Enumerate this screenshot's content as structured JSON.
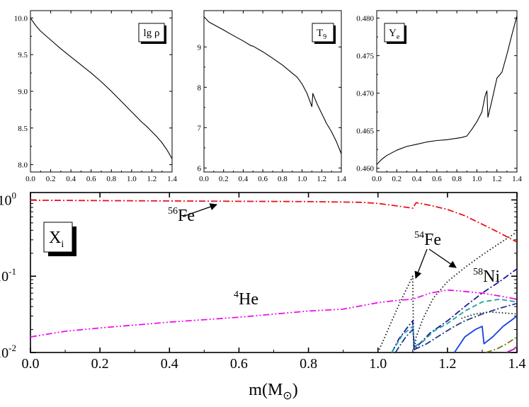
{
  "chart_data": [
    {
      "type": "line",
      "legend_label": "lg ρ",
      "xlim": [
        0.0,
        1.4
      ],
      "ylim": [
        7.9,
        10.1
      ],
      "x_ticks": [
        "0.0",
        "0.2",
        "0.4",
        "0.6",
        "0.8",
        "1.0",
        "1.2",
        "1.4"
      ],
      "y_ticks": [
        "8.0",
        "8.5",
        "9.0",
        "9.5",
        "10.0"
      ],
      "series": [
        {
          "color": "#000000",
          "x": [
            0.0,
            0.05,
            0.1,
            0.2,
            0.3,
            0.4,
            0.5,
            0.6,
            0.7,
            0.8,
            0.9,
            1.0,
            1.05,
            1.1,
            1.15,
            1.2,
            1.25,
            1.3,
            1.35,
            1.4
          ],
          "y": [
            10.0,
            9.9,
            9.82,
            9.7,
            9.58,
            9.47,
            9.36,
            9.25,
            9.13,
            9.0,
            8.86,
            8.72,
            8.65,
            8.58,
            8.52,
            8.45,
            8.38,
            8.3,
            8.2,
            8.08
          ]
        }
      ]
    },
    {
      "type": "line",
      "legend_label": "T9",
      "xlim": [
        0.0,
        1.4
      ],
      "ylim": [
        5.9,
        9.9
      ],
      "x_ticks": [
        "0.0",
        "0.2",
        "0.4",
        "0.6",
        "0.8",
        "1.0",
        "1.2",
        "1.4"
      ],
      "y_ticks": [
        "6",
        "7",
        "8",
        "9"
      ],
      "series": [
        {
          "color": "#000000",
          "x": [
            0.0,
            0.05,
            0.1,
            0.2,
            0.3,
            0.4,
            0.48,
            0.5,
            0.6,
            0.7,
            0.8,
            0.9,
            0.95,
            1.0,
            1.05,
            1.08,
            1.1,
            1.11,
            1.12,
            1.15,
            1.2,
            1.25,
            1.3,
            1.35,
            1.4
          ],
          "y": [
            9.75,
            9.62,
            9.55,
            9.42,
            9.28,
            9.15,
            9.03,
            9.02,
            8.88,
            8.72,
            8.55,
            8.35,
            8.25,
            8.08,
            7.85,
            7.65,
            7.52,
            7.85,
            7.78,
            7.6,
            7.35,
            7.1,
            6.9,
            6.65,
            6.35
          ]
        }
      ]
    },
    {
      "type": "line",
      "legend_label": "Ye",
      "xlim": [
        0.0,
        1.4
      ],
      "ylim": [
        0.4595,
        0.481
      ],
      "x_ticks": [
        "0.0",
        "0.2",
        "0.4",
        "0.6",
        "0.8",
        "1.0",
        "1.2",
        "1.4"
      ],
      "y_ticks": [
        "0.460",
        "0.465",
        "0.470",
        "0.475",
        "0.480"
      ],
      "series": [
        {
          "color": "#000000",
          "x": [
            0.0,
            0.05,
            0.1,
            0.2,
            0.3,
            0.4,
            0.5,
            0.6,
            0.7,
            0.8,
            0.85,
            0.9,
            0.95,
            1.0,
            1.05,
            1.08,
            1.09,
            1.1,
            1.11,
            1.15,
            1.2,
            1.25,
            1.3,
            1.35,
            1.4
          ],
          "y": [
            0.4605,
            0.4612,
            0.4617,
            0.4624,
            0.4629,
            0.4632,
            0.4635,
            0.4637,
            0.4638,
            0.464,
            0.4641,
            0.4643,
            0.4652,
            0.4662,
            0.4675,
            0.4695,
            0.47,
            0.4703,
            0.4668,
            0.469,
            0.472,
            0.4728,
            0.4752,
            0.4778,
            0.4803
          ]
        }
      ]
    },
    {
      "type": "line",
      "log_y": true,
      "legend_label": "Xi",
      "xlabel": "m(M⊙)",
      "xlim": [
        0.0,
        1.4
      ],
      "ylim": [
        0.01,
        1.25
      ],
      "x_ticks": [
        "0.0",
        "0.2",
        "0.4",
        "0.6",
        "0.8",
        "1.0",
        "1.2",
        "1.4"
      ],
      "y_ticks": [
        {
          "value": 1,
          "mantissa": "10",
          "exp": "0"
        },
        {
          "value": 0.1,
          "mantissa": "10",
          "exp": "-1"
        },
        {
          "value": 0.01,
          "mantissa": "10",
          "exp": "-2"
        }
      ],
      "annotations": [
        {
          "sup": "56",
          "text": "Fe"
        },
        {
          "sup": "54",
          "text": "Fe"
        },
        {
          "sup": "58",
          "text": "Ni"
        },
        {
          "sup": "4",
          "text": "He"
        }
      ],
      "series": [
        {
          "color": "#e8141c",
          "dash": "9,3,2,3",
          "x": [
            0.0,
            0.2,
            0.4,
            0.6,
            0.8,
            0.95,
            1.0,
            1.05,
            1.1,
            1.11,
            1.15,
            1.2,
            1.25,
            1.3,
            1.35,
            1.4
          ],
          "y": [
            0.99,
            0.98,
            0.97,
            0.96,
            0.95,
            0.93,
            0.9,
            0.84,
            0.78,
            0.92,
            0.85,
            0.75,
            0.62,
            0.48,
            0.37,
            0.28
          ]
        },
        {
          "color": "#ee11ee",
          "dash": "9,3,2,3,2,3",
          "x": [
            0.0,
            0.1,
            0.2,
            0.4,
            0.6,
            0.8,
            0.9,
            1.0,
            1.05,
            1.1,
            1.15,
            1.2,
            1.25,
            1.3,
            1.35,
            1.4
          ],
          "y": [
            0.016,
            0.019,
            0.021,
            0.025,
            0.029,
            0.035,
            0.037,
            0.045,
            0.048,
            0.05,
            0.06,
            0.066,
            0.063,
            0.06,
            0.055,
            0.05
          ]
        },
        {
          "color": "#111111",
          "dash": "1.5,3",
          "x": [
            1.0,
            1.02,
            1.04,
            1.06,
            1.08,
            1.1,
            1.103,
            1.11,
            1.13,
            1.16,
            1.2,
            1.25,
            1.3,
            1.35,
            1.4
          ],
          "y": [
            0.01,
            0.016,
            0.026,
            0.042,
            0.065,
            0.1,
            0.01,
            0.016,
            0.028,
            0.052,
            0.085,
            0.13,
            0.19,
            0.27,
            0.38
          ]
        },
        {
          "color": "#1a1a9a",
          "dash": "9,3,2,3",
          "x": [
            1.04,
            1.06,
            1.08,
            1.1,
            1.104,
            1.12,
            1.15,
            1.2,
            1.25,
            1.3,
            1.35,
            1.4
          ],
          "y": [
            0.01,
            0.015,
            0.02,
            0.026,
            0.011,
            0.013,
            0.018,
            0.026,
            0.04,
            0.06,
            0.085,
            0.125
          ]
        },
        {
          "color": "#1f9f9f",
          "dash": "7,4",
          "x": [
            1.04,
            1.07,
            1.1,
            1.105,
            1.13,
            1.16,
            1.2,
            1.25,
            1.3,
            1.35,
            1.4
          ],
          "y": [
            0.01,
            0.017,
            0.022,
            0.012,
            0.014,
            0.019,
            0.024,
            0.035,
            0.046,
            0.05,
            0.046
          ]
        },
        {
          "color": "#1a3a8a",
          "dash": "9,3,2,3",
          "x": [
            1.05,
            1.08,
            1.1,
            1.106,
            1.14,
            1.18,
            1.22,
            1.25,
            1.3,
            1.35,
            1.4
          ],
          "y": [
            0.01,
            0.016,
            0.02,
            0.011,
            0.013,
            0.017,
            0.022,
            0.026,
            0.032,
            0.038,
            0.044
          ]
        },
        {
          "color": "#1a1a1a",
          "dash": "1.5,3",
          "x": [
            1.24,
            1.28,
            1.32,
            1.36,
            1.4
          ],
          "y": [
            0.028,
            0.032,
            0.034,
            0.033,
            0.032
          ]
        },
        {
          "color": "#1540e0",
          "dash": "",
          "x": [
            1.22,
            1.25,
            1.28,
            1.3,
            1.305,
            1.33,
            1.36,
            1.4
          ],
          "y": [
            0.01,
            0.016,
            0.02,
            0.022,
            0.013,
            0.016,
            0.022,
            0.03
          ]
        },
        {
          "color": "#7a7a10",
          "dash": "9,3,2,3",
          "x": [
            1.31,
            1.34,
            1.37,
            1.4
          ],
          "y": [
            0.01,
            0.011,
            0.013,
            0.016
          ]
        },
        {
          "color": "#b01ab0",
          "dash": "",
          "x": [
            1.37,
            1.39,
            1.4
          ],
          "y": [
            0.01,
            0.011,
            0.012
          ]
        }
      ]
    }
  ]
}
